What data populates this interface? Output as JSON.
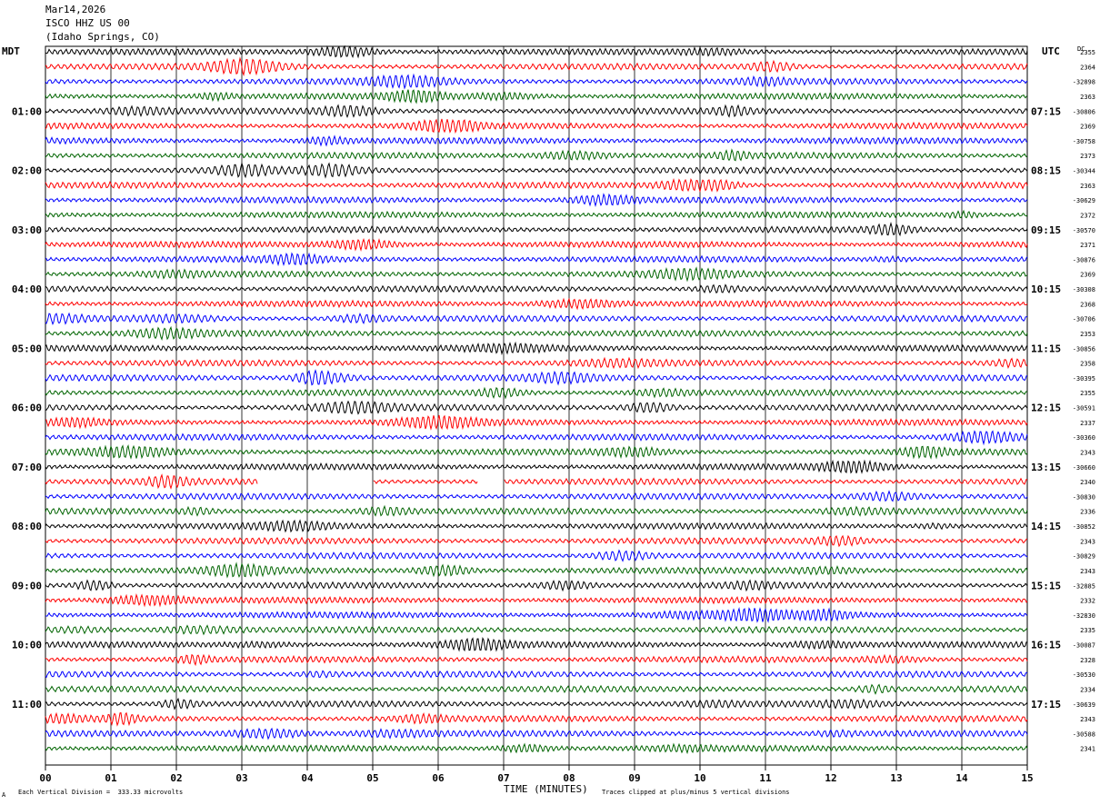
{
  "header": {
    "date": "Mar14,2026",
    "station": "ISCO HHZ US 00",
    "location": "(Idaho Springs, CO)"
  },
  "left_label": "MDT",
  "right_label": "UTC",
  "dc_label": "DC",
  "footer": {
    "scale": "Each Vertical Division =  333.33 microvolts",
    "clip": "Traces clipped at plus/minus 5 vertical divisions",
    "marker": "A"
  },
  "chart_data": {
    "type": "line",
    "title": "",
    "xlabel": "TIME (MINUTES)",
    "ylabel": "",
    "xlim": [
      0,
      15
    ],
    "x_ticks": [
      "00",
      "01",
      "02",
      "03",
      "04",
      "05",
      "06",
      "07",
      "08",
      "09",
      "10",
      "11",
      "12",
      "13",
      "14",
      "15"
    ],
    "grid": true,
    "trace_colors": [
      "#000000",
      "#ff0000",
      "#0000ff",
      "#006400"
    ],
    "rows_per_hour": 4,
    "row_count": 48,
    "left_hour_labels": [
      "01:00",
      "02:00",
      "03:00",
      "04:00",
      "05:00",
      "06:00",
      "07:00",
      "08:00",
      "09:00",
      "10:00",
      "11:00"
    ],
    "right_hour_labels": [
      "07:15",
      "08:15",
      "09:15",
      "10:15",
      "11:15",
      "12:15",
      "13:15",
      "14:15",
      "15:15",
      "16:15",
      "17:15"
    ],
    "dc_offsets": [
      "2355",
      "2364",
      "-32898",
      "2363",
      "-30806",
      "2369",
      "-30758",
      "2373",
      "-30344",
      "2363",
      "-30629",
      "2372",
      "-30570",
      "2371",
      "-30876",
      "2369",
      "-30308",
      "2368",
      "-30706",
      "2353",
      "-30856",
      "2358",
      "-30395",
      "2355",
      "-30591",
      "2337",
      "-30360",
      "2343",
      "-30660",
      "2340",
      "-30830",
      "2336",
      "-30852",
      "2343",
      "-30829",
      "2343",
      "-32885",
      "2332",
      "-32830",
      "2335",
      "-30087",
      "2328",
      "-30530",
      "2334",
      "-30639",
      "2343",
      "-30588",
      "2341"
    ],
    "gaps": [
      {
        "row": 29,
        "start_min": 3.25,
        "end_min": 5.0
      },
      {
        "row": 29,
        "start_min": 6.6,
        "end_min": 7.0
      }
    ]
  }
}
